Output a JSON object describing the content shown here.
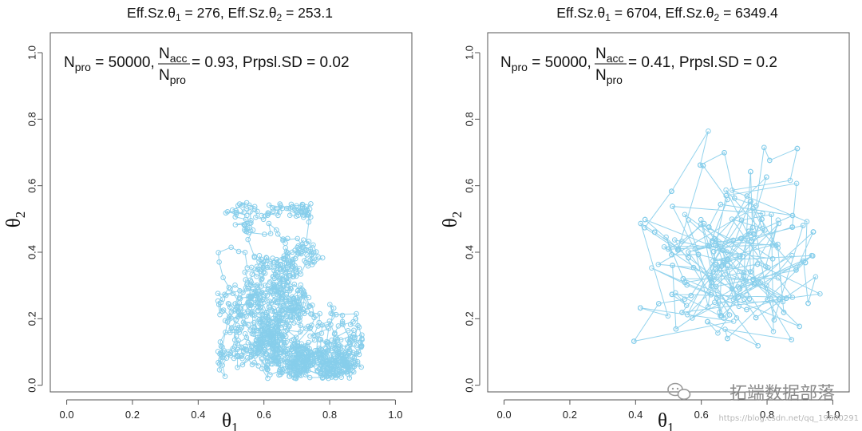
{
  "chart_data": [
    {
      "type": "scatter",
      "id": "left",
      "title": {
        "p1": "Eff.Sz.",
        "theta": "θ",
        "s1": "1",
        "p2": " = 276, Eff.Sz.",
        "s2": "2",
        "p3": " = 253.1"
      },
      "annotation": {
        "npro": "N",
        "npro_sub": "pro",
        "npro_eq": " = 50000,",
        "nacc": "N",
        "nacc_sub": "acc",
        "nden": "N",
        "nden_sub": "pro",
        "rest": " = 0.93, Prpsl.SD = 0.02"
      },
      "xlabel": {
        "sym": "θ",
        "sub": "1"
      },
      "ylabel": {
        "sym": "θ",
        "sub": "2"
      },
      "xlim": [
        -0.05,
        1.05
      ],
      "ylim": [
        -0.02,
        1.06
      ],
      "xticks": [
        "0.0",
        "0.2",
        "0.4",
        "0.6",
        "0.8",
        "1.0"
      ],
      "yticks": [
        "0.0",
        "0.2",
        "0.4",
        "0.6",
        "0.8",
        "1.0"
      ],
      "series_color": "#87ceeb",
      "chain": {
        "length": 1200,
        "start": [
          0.7,
          0.38
        ],
        "proposal_sd": 0.02,
        "x_range": [
          0.46,
          0.9
        ],
        "y_range": [
          0.02,
          0.55
        ],
        "seed": 11
      }
    },
    {
      "type": "scatter",
      "id": "right",
      "title": {
        "p1": "Eff.Sz.",
        "theta": "θ",
        "s1": "1",
        "p2": " = 6704, Eff.Sz.",
        "s2": "2",
        "p3": " = 6349.4"
      },
      "annotation": {
        "npro": "N",
        "npro_sub": "pro",
        "npro_eq": " = 50000,",
        "nacc": "N",
        "nacc_sub": "acc",
        "nden": "N",
        "nden_sub": "pro",
        "rest": " = 0.41, Prpsl.SD = 0.2"
      },
      "xlabel": {
        "sym": "θ",
        "sub": "1"
      },
      "ylabel": {
        "sym": "θ",
        "sub": "2"
      },
      "xlim": [
        -0.05,
        1.05
      ],
      "ylim": [
        -0.02,
        1.06
      ],
      "xticks": [
        "0.0",
        "0.2",
        "0.4",
        "0.6",
        "0.8",
        "1.0"
      ],
      "yticks": [
        "0.0",
        "0.2",
        "0.4",
        "0.6",
        "0.8",
        "1.0"
      ],
      "series_color": "#87ceeb",
      "chain": {
        "length": 480,
        "start": [
          0.68,
          0.36
        ],
        "proposal_sd": 0.2,
        "x_range": [
          0.36,
          0.98
        ],
        "y_range": [
          0.06,
          0.8
        ],
        "seed": 7
      }
    }
  ],
  "watermark": {
    "wechat_label": "拓端数据部落",
    "url": "https://blog.csdn.net/qq_19600291"
  }
}
